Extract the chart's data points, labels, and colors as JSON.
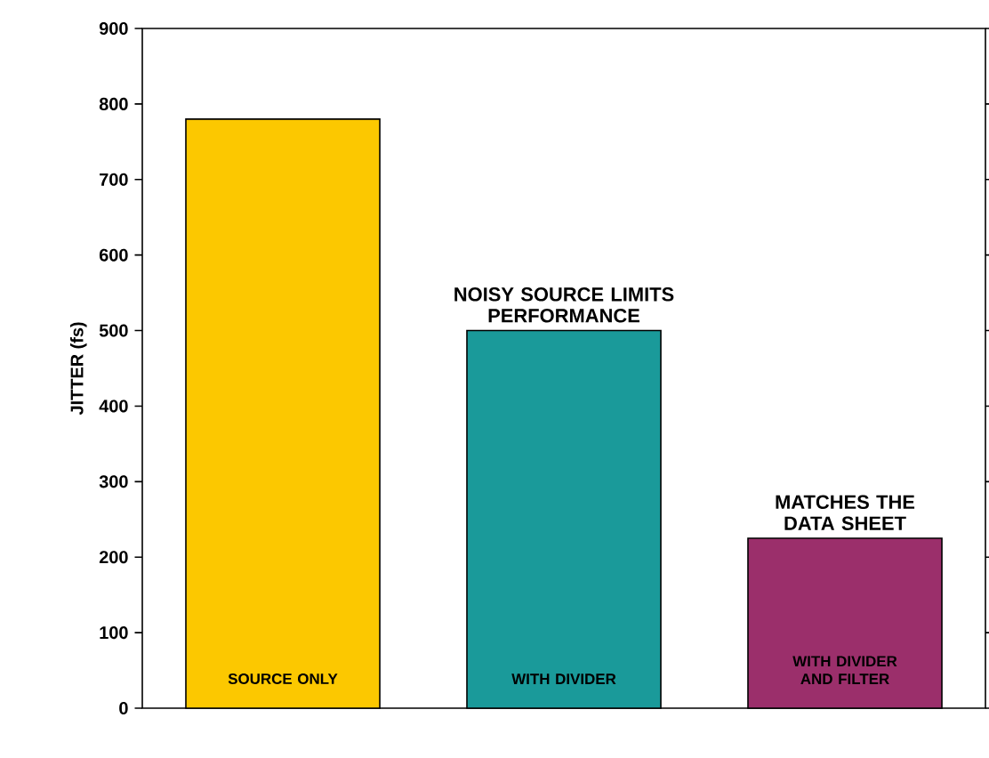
{
  "chart_data": {
    "type": "bar",
    "ylabel": "JITTER (fs)",
    "categories": [
      "SOURCE ONLY",
      "WITH DIVIDER",
      "WITH DIVIDER AND FILTER"
    ],
    "values": [
      780,
      500,
      225
    ],
    "colors": [
      "#fcc800",
      "#1a9a9a",
      "#9b2f6b"
    ],
    "ylim": [
      0,
      900
    ],
    "yticks": [
      0,
      100,
      200,
      300,
      400,
      500,
      600,
      700,
      800,
      900
    ],
    "annotations": [
      {
        "text": "NOISY SOURCE LIMITS PERFORMANCE",
        "x": "WITH DIVIDER",
        "y": 500
      },
      {
        "text": "MATCHES THE DATA SHEET",
        "x": "WITH DIVIDER AND FILTER",
        "y": 225
      }
    ]
  }
}
